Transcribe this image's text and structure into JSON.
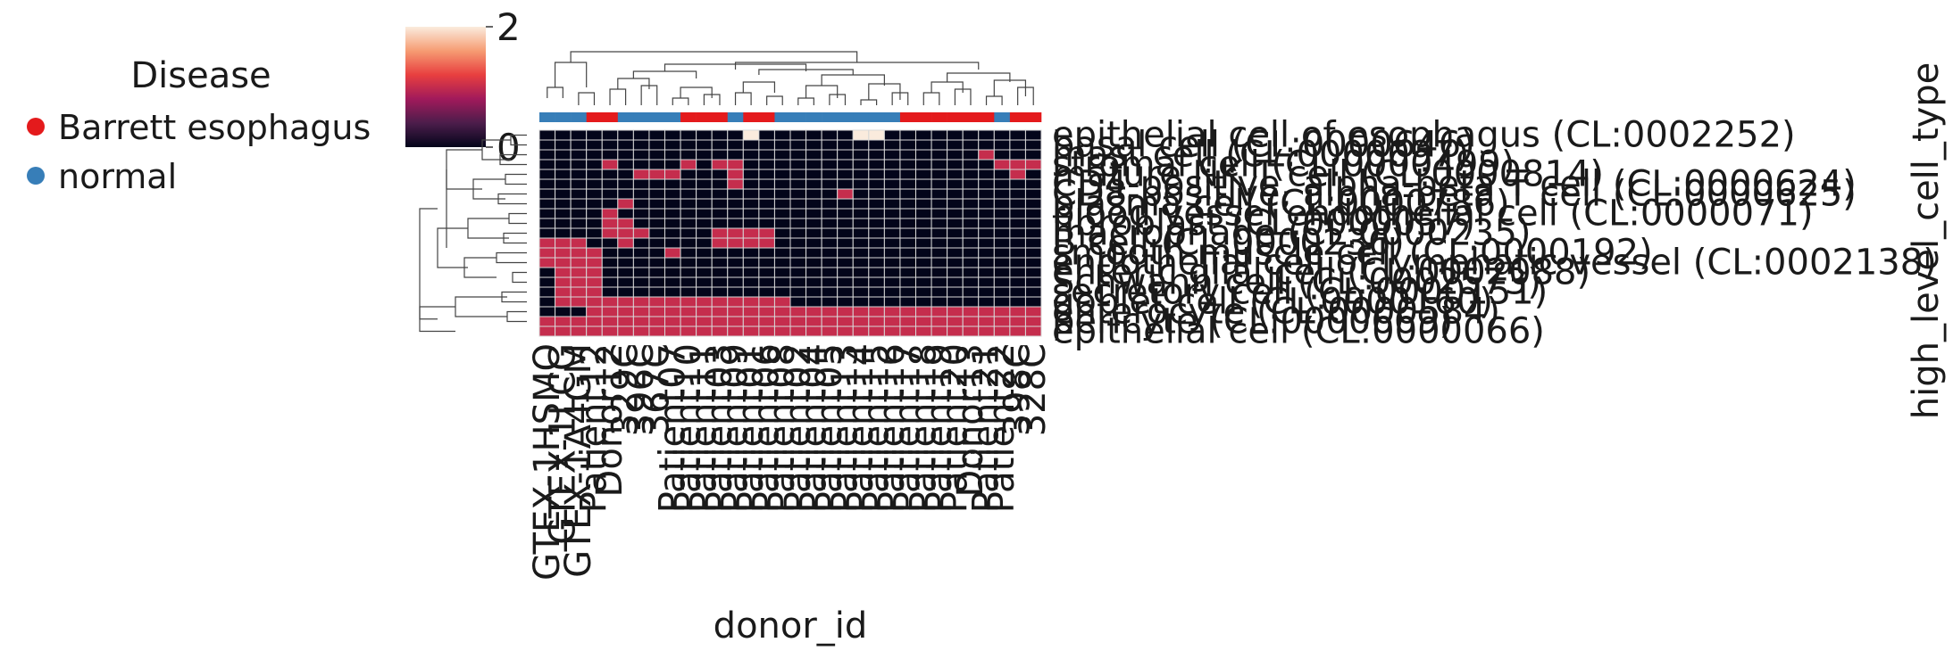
{
  "chart_data": {
    "type": "heatmap",
    "title": "",
    "xlabel": "donor_id",
    "ylabel": "high_level_cell_type",
    "colorbar": {
      "ticks": [
        0,
        2
      ],
      "range": [
        0,
        2
      ],
      "colors": [
        "#03051a",
        "#4c1d4b",
        "#a11a5b",
        "#e83f3f",
        "#f69c73",
        "#faebdd"
      ]
    },
    "legend": {
      "title": "Disease",
      "placement": "top-left",
      "entries": [
        {
          "label": "Barrett esophagus",
          "color": "#e41a1c"
        },
        {
          "label": "normal",
          "color": "#377eb8"
        }
      ]
    },
    "columns": [
      {
        "label": "GTEX-1HSMO",
        "group": "normal"
      },
      {
        "label": "GTEX-1LCG",
        "group": "normal"
      },
      {
        "label": "GTEX-1A4GM",
        "group": "normal"
      },
      {
        "label": "Patient12",
        "group": "Barrett esophagus"
      },
      {
        "label": "Donor12",
        "group": "Barrett esophagus"
      },
      {
        "label": "329C",
        "group": "normal"
      },
      {
        "label": "396C",
        "group": "normal"
      },
      {
        "label": "367C",
        "group": "normal"
      },
      {
        "label": "Patient07",
        "group": "normal"
      },
      {
        "label": "Patient10",
        "group": "Barrett esophagus"
      },
      {
        "label": "Patient11",
        "group": "Barrett esophagus"
      },
      {
        "label": "Patient03",
        "group": "Barrett esophagus"
      },
      {
        "label": "Patient09",
        "group": "normal"
      },
      {
        "label": "Patient01",
        "group": "Barrett esophagus"
      },
      {
        "label": "Patient06",
        "group": "Barrett esophagus"
      },
      {
        "label": "Patient08",
        "group": "normal"
      },
      {
        "label": "Patient02",
        "group": "normal"
      },
      {
        "label": "Patient04",
        "group": "normal"
      },
      {
        "label": "Patient05",
        "group": "normal"
      },
      {
        "label": "Patient13",
        "group": "normal"
      },
      {
        "label": "Patient14",
        "group": "normal"
      },
      {
        "label": "Patient15",
        "group": "normal"
      },
      {
        "label": "Patient16",
        "group": "normal"
      },
      {
        "label": "Patient17",
        "group": "Barrett esophagus"
      },
      {
        "label": "Patient18",
        "group": "Barrett esophagus"
      },
      {
        "label": "Patient19",
        "group": "Barrett esophagus"
      },
      {
        "label": "Patient20",
        "group": "Barrett esophagus"
      },
      {
        "label": "Donor13",
        "group": "Barrett esophagus"
      },
      {
        "label": "Patient21",
        "group": "Barrett esophagus"
      },
      {
        "label": "Patient22",
        "group": "normal"
      },
      {
        "label": "398C",
        "group": "Barrett esophagus"
      },
      {
        "label": "328C",
        "group": "Barrett esophagus"
      }
    ],
    "rows": [
      "epithelial cell of esophagus (CL:0002252)",
      "basal cell (CL:0000646)",
      "mast cell (CL:0000097)",
      "stromal cell (CL:0000499)",
      "mature NK T cell (CL:0000814)",
      "CD4-positive, alpha-beta T cell (CL:0000624)",
      "CD8-positive, alpha-beta T cell (CL:0000625)",
      "plasma cell (CL:0000786)",
      "blood vessel endothelial cell (CL:0000071)",
      "fibroblast (CL:0000057)",
      "macrophage (CL:0000235)",
      "B cell (CL:0000236)",
      "smooth muscle cell (CL:0000192)",
      "endothelial cell of lymphatic vessel (CL:0002138)",
      "enteric glial cell (CL:0002088)",
      "Schwann cell (CL:0002573)",
      "secretory cell (CL:0000151)",
      "goblet cell (CL:0000160)",
      "enterocyte (CL:0000584)",
      "pericyte (CL:0000669)",
      "epithelial cell (CL:0000066)"
    ],
    "values": [
      [
        0,
        0,
        0,
        0,
        0,
        0,
        0,
        0,
        0,
        0,
        0,
        0,
        0,
        2,
        0,
        0,
        0,
        0,
        0,
        0,
        2,
        2,
        0,
        0,
        0,
        0,
        0,
        0,
        0,
        0,
        0,
        0
      ],
      [
        0,
        0,
        0,
        0,
        0,
        0,
        0,
        0,
        0,
        0,
        0,
        0,
        0,
        0,
        0,
        0,
        0,
        0,
        0,
        0,
        0,
        0,
        0,
        0,
        0,
        0,
        0,
        0,
        0,
        0,
        0,
        0
      ],
      [
        0,
        0,
        0,
        0,
        0,
        0,
        0,
        0,
        0,
        0,
        0,
        0,
        0,
        0,
        0,
        0,
        0,
        0,
        0,
        0,
        0,
        0,
        0,
        0,
        0,
        0,
        0,
        0,
        1,
        0,
        0,
        0
      ],
      [
        0,
        0,
        0,
        0,
        1,
        0,
        0,
        0,
        0,
        1,
        0,
        1,
        1,
        0,
        0,
        0,
        0,
        0,
        0,
        0,
        0,
        0,
        0,
        0,
        0,
        0,
        0,
        0,
        0,
        1,
        1,
        1
      ],
      [
        0,
        0,
        0,
        0,
        0,
        0,
        1,
        1,
        1,
        0,
        0,
        0,
        1,
        0,
        0,
        0,
        0,
        0,
        0,
        0,
        0,
        0,
        0,
        0,
        0,
        0,
        0,
        0,
        0,
        0,
        1,
        0
      ],
      [
        0,
        0,
        0,
        0,
        0,
        0,
        0,
        0,
        0,
        0,
        0,
        0,
        1,
        0,
        0,
        0,
        0,
        0,
        0,
        0,
        0,
        0,
        0,
        0,
        0,
        0,
        0,
        0,
        0,
        0,
        0,
        0
      ],
      [
        0,
        0,
        0,
        0,
        0,
        0,
        0,
        0,
        0,
        0,
        0,
        0,
        0,
        0,
        0,
        0,
        0,
        0,
        0,
        1,
        0,
        0,
        0,
        0,
        0,
        0,
        0,
        0,
        0,
        0,
        0,
        0
      ],
      [
        0,
        0,
        0,
        0,
        0,
        1,
        0,
        0,
        0,
        0,
        0,
        0,
        0,
        0,
        0,
        0,
        0,
        0,
        0,
        0,
        0,
        0,
        0,
        0,
        0,
        0,
        0,
        0,
        0,
        0,
        0,
        0
      ],
      [
        0,
        0,
        0,
        0,
        1,
        0,
        0,
        0,
        0,
        0,
        0,
        0,
        0,
        0,
        0,
        0,
        0,
        0,
        0,
        0,
        0,
        0,
        0,
        0,
        0,
        0,
        0,
        0,
        0,
        0,
        0,
        0
      ],
      [
        0,
        0,
        0,
        0,
        1,
        1,
        0,
        0,
        0,
        0,
        0,
        0,
        0,
        0,
        0,
        0,
        0,
        0,
        0,
        0,
        0,
        0,
        0,
        0,
        0,
        0,
        0,
        0,
        0,
        0,
        0,
        0
      ],
      [
        0,
        0,
        0,
        0,
        1,
        1,
        1,
        0,
        0,
        0,
        0,
        1,
        1,
        1,
        1,
        0,
        0,
        0,
        0,
        0,
        0,
        0,
        0,
        0,
        0,
        0,
        0,
        0,
        0,
        0,
        0,
        0
      ],
      [
        1,
        1,
        1,
        0,
        0,
        1,
        0,
        0,
        0,
        0,
        0,
        1,
        1,
        1,
        1,
        0,
        0,
        0,
        0,
        0,
        0,
        0,
        0,
        0,
        0,
        0,
        0,
        0,
        0,
        0,
        0,
        0
      ],
      [
        1,
        1,
        1,
        1,
        0,
        0,
        0,
        0,
        1,
        0,
        0,
        0,
        0,
        0,
        0,
        0,
        0,
        0,
        0,
        0,
        0,
        0,
        0,
        0,
        0,
        0,
        0,
        0,
        0,
        0,
        0,
        0
      ],
      [
        1,
        1,
        1,
        1,
        0,
        0,
        0,
        0,
        0,
        0,
        0,
        0,
        0,
        0,
        0,
        0,
        0,
        0,
        0,
        0,
        0,
        0,
        0,
        0,
        0,
        0,
        0,
        0,
        0,
        0,
        0,
        0
      ],
      [
        0,
        1,
        1,
        1,
        0,
        0,
        0,
        0,
        0,
        0,
        0,
        0,
        0,
        0,
        0,
        0,
        0,
        0,
        0,
        0,
        0,
        0,
        0,
        0,
        0,
        0,
        0,
        0,
        0,
        0,
        0,
        0
      ],
      [
        0,
        1,
        1,
        1,
        0,
        0,
        0,
        0,
        0,
        0,
        0,
        0,
        0,
        0,
        0,
        0,
        0,
        0,
        0,
        0,
        0,
        0,
        0,
        0,
        0,
        0,
        0,
        0,
        0,
        0,
        0,
        0
      ],
      [
        0,
        1,
        1,
        1,
        0,
        0,
        0,
        0,
        0,
        0,
        0,
        0,
        0,
        0,
        0,
        0,
        0,
        0,
        0,
        0,
        0,
        0,
        0,
        0,
        0,
        0,
        0,
        0,
        0,
        0,
        0,
        0
      ],
      [
        0,
        1,
        1,
        1,
        1,
        1,
        1,
        1,
        1,
        1,
        1,
        1,
        1,
        1,
        1,
        1,
        0,
        0,
        0,
        0,
        0,
        0,
        0,
        0,
        0,
        0,
        0,
        0,
        0,
        0,
        0,
        0
      ],
      [
        0,
        0,
        0,
        1,
        1,
        1,
        1,
        1,
        1,
        1,
        1,
        1,
        1,
        1,
        1,
        1,
        1,
        1,
        1,
        1,
        1,
        1,
        1,
        1,
        1,
        1,
        1,
        1,
        1,
        1,
        1,
        1
      ],
      [
        1,
        1,
        1,
        1,
        1,
        1,
        1,
        1,
        1,
        1,
        1,
        1,
        1,
        1,
        1,
        1,
        1,
        1,
        1,
        1,
        1,
        1,
        1,
        1,
        1,
        1,
        1,
        1,
        1,
        1,
        1,
        1
      ],
      [
        1,
        1,
        1,
        1,
        1,
        1,
        1,
        1,
        1,
        1,
        1,
        1,
        1,
        1,
        1,
        1,
        1,
        1,
        1,
        1,
        1,
        1,
        1,
        1,
        1,
        1,
        1,
        1,
        1,
        1,
        1,
        1
      ]
    ],
    "grid": true
  }
}
